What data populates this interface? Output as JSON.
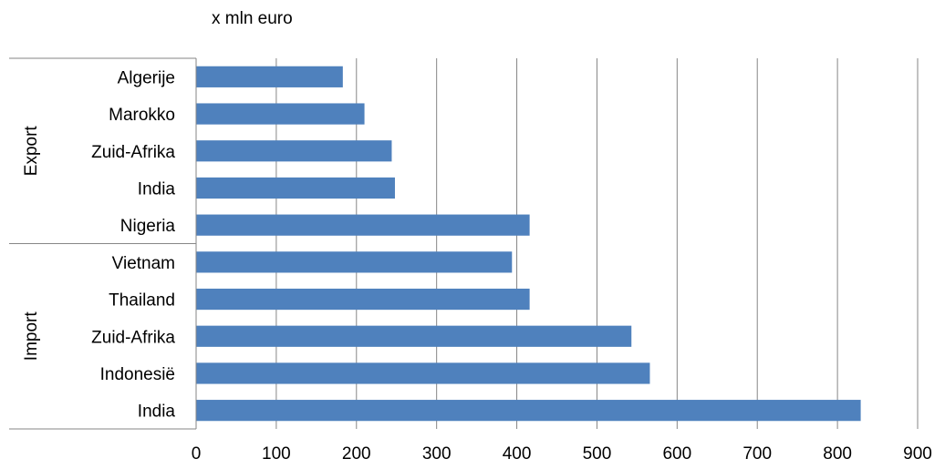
{
  "chart_data": {
    "type": "bar",
    "orientation": "horizontal",
    "title": "x mln euro",
    "xlim": [
      0,
      900
    ],
    "x_ticks": [
      0,
      100,
      200,
      300,
      400,
      500,
      600,
      700,
      800,
      900
    ],
    "grid": "vertical",
    "groups": [
      {
        "name": "Export",
        "categories": [
          "Algerije",
          "Marokko",
          "Zuid-Afrika",
          "India",
          "Nigeria"
        ],
        "values": [
          183,
          210,
          244,
          248,
          416
        ]
      },
      {
        "name": "Import",
        "categories": [
          "Vietnam",
          "Thailand",
          "Zuid-Afrika",
          "Indonesië",
          "India"
        ],
        "values": [
          394,
          416,
          543,
          566,
          829
        ]
      }
    ],
    "bar_color": "#4F81BD",
    "grid_color": "#868686"
  }
}
